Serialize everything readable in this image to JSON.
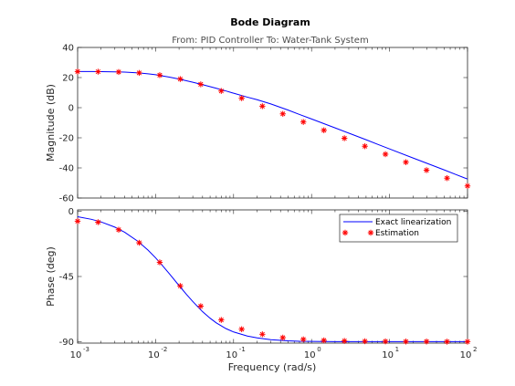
{
  "chart_data": {
    "type": "line",
    "title": "Bode Diagram",
    "subtitle": "From: PID Controller  To: Water-Tank System",
    "xlabel": "Frequency  (rad/s)",
    "x_scale": "log",
    "xlim": [
      0.001,
      100
    ],
    "x_ticks": [
      {
        "base": "10",
        "exp": "-3"
      },
      {
        "base": "10",
        "exp": "-2"
      },
      {
        "base": "10",
        "exp": "-1"
      },
      {
        "base": "10",
        "exp": "0"
      },
      {
        "base": "10",
        "exp": "1"
      },
      {
        "base": "10",
        "exp": "2"
      }
    ],
    "legend": {
      "position": "top-right",
      "entries": [
        {
          "name": "Exact linearization",
          "color": "#0000ff",
          "marker": "line"
        },
        {
          "name": "Estimation",
          "color": "#ff0000",
          "marker": "asterisk"
        }
      ]
    },
    "panels": [
      {
        "id": "magnitude",
        "ylabel": "Magnitude (dB)",
        "ylim": [
          -60,
          40
        ],
        "yticks": [
          -60,
          -40,
          -20,
          0,
          20,
          40
        ],
        "series": [
          {
            "name": "Exact linearization",
            "color": "#0000ff",
            "x": [
              0.001,
              0.0015,
              0.002,
              0.003,
              0.004,
              0.006,
              0.008,
              0.01,
              0.015,
              0.02,
              0.03,
              0.04,
              0.06,
              0.08,
              0.1,
              0.15,
              0.2,
              0.3,
              0.5,
              0.7,
              1,
              2,
              3,
              5,
              7,
              10,
              20,
              30,
              50,
              70,
              100
            ],
            "y": [
              24.0,
              24.0,
              23.9,
              23.8,
              23.6,
              23.1,
              22.5,
              21.9,
              20.3,
              19.0,
              16.9,
              15.3,
              12.9,
              11.1,
              9.6,
              7.0,
              5.3,
              2.5,
              -1.6,
              -4.5,
              -7.5,
              -13.4,
              -16.9,
              -21.3,
              -24.3,
              -27.4,
              -33.4,
              -36.9,
              -41.3,
              -44.3,
              -47.4
            ]
          },
          {
            "name": "Estimation",
            "color": "#ff0000",
            "x": [
              0.001,
              0.00183,
              0.00336,
              0.00616,
              0.0113,
              0.0207,
              0.0379,
              0.0695,
              0.127,
              0.234,
              0.428,
              0.785,
              1.44,
              2.64,
              4.83,
              8.86,
              16.2,
              29.8,
              54.6,
              100
            ],
            "y": [
              24.0,
              23.9,
              23.7,
              23.1,
              21.6,
              19.0,
              15.5,
              11.1,
              6.3,
              1.0,
              -4.1,
              -9.5,
              -15.0,
              -20.3,
              -25.6,
              -30.9,
              -36.2,
              -41.5,
              -46.8,
              -52.0
            ]
          }
        ]
      },
      {
        "id": "phase",
        "ylabel": "Phase (deg)",
        "ylim": [
          -91,
          1
        ],
        "yticks": [
          -90,
          -45,
          0
        ],
        "series": [
          {
            "name": "Exact linearization",
            "color": "#0000ff",
            "x": [
              0.001,
              0.0015,
              0.002,
              0.003,
              0.004,
              0.006,
              0.008,
              0.01,
              0.012,
              0.015,
              0.02,
              0.025,
              0.03,
              0.04,
              0.05,
              0.06,
              0.08,
              0.1,
              0.15,
              0.2,
              0.3,
              0.5,
              0.7,
              1,
              2,
              5,
              10,
              20,
              50,
              100
            ],
            "y": [
              -3.7,
              -5.5,
              -7.3,
              -10.9,
              -14.4,
              -20.9,
              -26.8,
              -32.1,
              -36.9,
              -43.1,
              -51.3,
              -57.5,
              -62.3,
              -69.3,
              -73.8,
              -77.0,
              -81.0,
              -83.3,
              -86.1,
              -87.4,
              -88.6,
              -89.4,
              -89.7,
              -89.8,
              -90.0,
              -90.0,
              -90.0,
              -90.0,
              -90.0,
              -90.0
            ]
          },
          {
            "name": "Estimation",
            "color": "#ff0000",
            "x": [
              0.001,
              0.00183,
              0.00336,
              0.00616,
              0.0113,
              0.0207,
              0.0379,
              0.0695,
              0.127,
              0.234,
              0.428,
              0.785,
              1.44,
              2.64,
              4.83,
              8.86,
              16.2,
              29.8,
              54.6,
              100
            ],
            "y": [
              -6.8,
              -7.5,
              -12.7,
              -21.7,
              -35.2,
              -51.5,
              -65.5,
              -75.0,
              -81.4,
              -84.9,
              -87.2,
              -88.4,
              -89.1,
              -89.5,
              -89.7,
              -89.8,
              -89.9,
              -89.9,
              -90.0,
              -90.0
            ]
          }
        ]
      }
    ]
  }
}
